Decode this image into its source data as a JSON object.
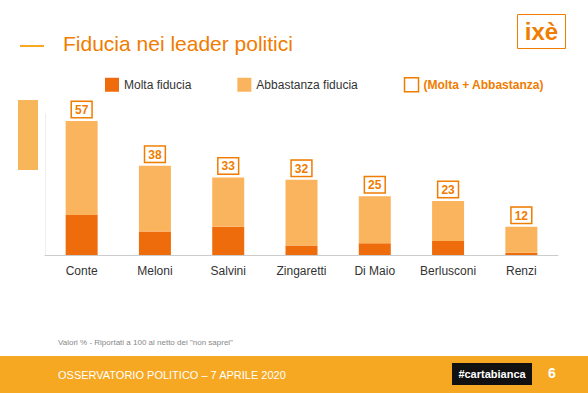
{
  "chart_data": {
    "type": "bar",
    "title": "Fiducia nei leader politici",
    "categories": [
      "Conte",
      "Meloni",
      "Salvini",
      "Zingaretti",
      "Di Maio",
      "Berlusconi",
      "Renzi"
    ],
    "series": [
      {
        "name": "Molta fiducia",
        "color": "#ef6c0c",
        "values": [
          17,
          10,
          12,
          4,
          5,
          6,
          1
        ]
      },
      {
        "name": "Abbastanza fiducia",
        "color": "#fbb45e",
        "values": [
          40,
          28,
          21,
          28,
          20,
          17,
          11
        ]
      },
      {
        "name": "(Molta + Abbastanza)",
        "color": "#f07c00",
        "type": "outline",
        "values": [
          57,
          38,
          33,
          32,
          25,
          23,
          12
        ]
      }
    ],
    "stacked": true,
    "data_labels": true,
    "tick_labels": "x",
    "grid": false,
    "legend": "top",
    "ylim": [
      0,
      60
    ],
    "note": "Valori % - Riportati a 100 al netto dei \"non saprei\"",
    "footer": "OSSERVATORIO POLITICO – 7 APRILE 2020",
    "hashtag": "#cartabianca",
    "page": "6",
    "logo": "ixè"
  }
}
